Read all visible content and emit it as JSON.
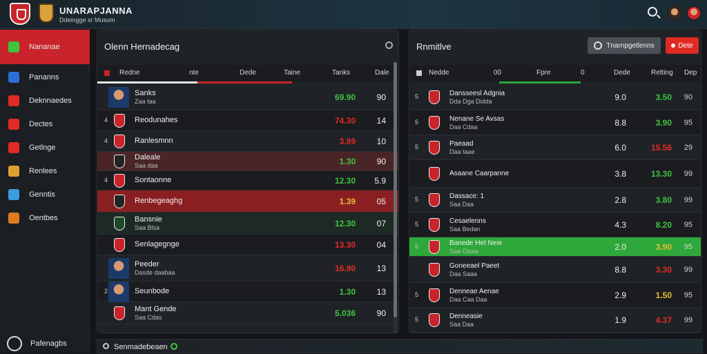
{
  "header": {
    "title": "UNARAPJANNA",
    "subtitle": "Ddeingge sr Musum"
  },
  "sidebar": {
    "items": [
      {
        "label": "Nananae",
        "icon": "team-crest-icon",
        "color": "#3ec43e",
        "active": true
      },
      {
        "label": "Pananns",
        "icon": "list-icon",
        "color": "#2a6fd6",
        "active": false
      },
      {
        "label": "Deknnaedes",
        "icon": "pin-icon",
        "color": "#e02b25",
        "active": false
      },
      {
        "label": "Dectes",
        "icon": "grid-icon",
        "color": "#e02b25",
        "active": false
      },
      {
        "label": "Getlnge",
        "icon": "flag-icon",
        "color": "#e02b25",
        "active": false
      },
      {
        "label": "Renlees",
        "icon": "trophy-icon",
        "color": "#e0a030",
        "active": false
      },
      {
        "label": "Genntis",
        "icon": "star-icon",
        "color": "#3a9de0",
        "active": false
      },
      {
        "label": "Oentbes",
        "icon": "ball-icon",
        "color": "#e07a20",
        "active": false
      }
    ],
    "footer_label": "Pafenagbs"
  },
  "left_panel": {
    "title": "Olenn Hernadecag",
    "columns": [
      "Redne",
      "nte",
      "Dede",
      "Taine",
      "Tanks",
      "Dale"
    ],
    "rows": [
      {
        "rank": "",
        "name": "Sanks",
        "sub": "Zaa taa",
        "val": "69.90",
        "val_color": "#3ec43e",
        "val2": "90",
        "kind": "photo",
        "crest": "#2a6fd6",
        "bg": "#1f2226"
      },
      {
        "rank": "4",
        "name": "Reodunahes",
        "sub": "",
        "val": "74.30",
        "val_color": "#e02b25",
        "val2": "14",
        "kind": "crest",
        "crest": "#c9242b",
        "bg": "#1a1c20"
      },
      {
        "rank": "4",
        "name": "Ranlesmnn",
        "sub": "",
        "val": "3.89",
        "val_color": "#e02b25",
        "val2": "10",
        "kind": "crest",
        "crest": "#c9242b",
        "bg": "#1f2226"
      },
      {
        "rank": "",
        "name": "Daleale",
        "sub": "Saa daa",
        "val": "1.30",
        "val_color": "#3ec43e",
        "val2": "90",
        "kind": "crest",
        "crest": "#222222",
        "bg": "#4a2528"
      },
      {
        "rank": "4",
        "name": "Sontaonne",
        "sub": "",
        "val": "12.30",
        "val_color": "#3ec43e",
        "val2": "5.9",
        "kind": "crest",
        "crest": "#c9242b",
        "bg": "#1a1c20"
      },
      {
        "rank": "",
        "name": "Renbegeaghg",
        "sub": "",
        "val": "1.39",
        "val_color": "#e0c030",
        "val2": "05",
        "kind": "crest",
        "crest": "#222222",
        "bg": "#8a1f22"
      },
      {
        "rank": "",
        "name": "Bansnie",
        "sub": "Saa Blsa",
        "val": "12.30",
        "val_color": "#3ec43e",
        "val2": "07",
        "kind": "crest",
        "crest": "#1a4a2a",
        "bg": "#1d2a24"
      },
      {
        "rank": "",
        "name": "Senlagegnge",
        "sub": "",
        "val": "13.30",
        "val_color": "#e02b25",
        "val2": "04",
        "kind": "crest",
        "crest": "#c9242b",
        "bg": "#1a1c20"
      },
      {
        "rank": "",
        "name": "Peeder",
        "sub": "Dasde daabaa",
        "val": "16.90",
        "val_color": "#e02b25",
        "val2": "13",
        "kind": "photo",
        "crest": "#2a9a3a",
        "bg": "#1f2226"
      },
      {
        "rank": "2",
        "name": "Seunbode",
        "sub": "",
        "val": "1.30",
        "val_color": "#3ec43e",
        "val2": "13",
        "kind": "photo",
        "crest": "#333333",
        "bg": "#1a1c20"
      },
      {
        "rank": "",
        "name": "Mant Gende",
        "sub": "Saa Cdas",
        "val": "5.036",
        "val_color": "#3ec43e",
        "val2": "90",
        "kind": "crest",
        "crest": "#c9242b",
        "bg": "#1f2226"
      }
    ]
  },
  "right_panel": {
    "title": "Rnmitlve",
    "filter_button": "Tnarnpgetlenns",
    "action_button": "Dete",
    "columns": [
      "Nedde",
      "00",
      "Fpre",
      "0",
      "Dede",
      "Retting",
      "Dep"
    ],
    "rows": [
      {
        "rank": "5",
        "name": "Dansseesl Adgnia",
        "sub": "Dda Dga Didda",
        "val2": "9.0",
        "val": "3.50",
        "val_color": "#3ec43e",
        "val3": "90",
        "bg": "#1f2226"
      },
      {
        "rank": "5",
        "name": "Nenane Se Avsas",
        "sub": "Daa Cdaa",
        "val2": "8.8",
        "val": "3.90",
        "val_color": "#3ec43e",
        "val3": "95",
        "bg": "#1a1c20"
      },
      {
        "rank": "5",
        "name": "Paeaad",
        "sub": "Daa taae",
        "val2": "6.0",
        "val": "15.56",
        "val_color": "#e02b25",
        "val3": "29",
        "bg": "#1f2226"
      },
      {
        "rank": "",
        "name": "Asaane Caarpanne",
        "sub": "",
        "val2": "3.8",
        "val": "13.30",
        "val_color": "#3ec43e",
        "val3": "99",
        "bg": "#1a1c20"
      },
      {
        "rank": "5",
        "name": "Dassace: 1",
        "sub": "Saa Daa",
        "val2": "2.8",
        "val": "3.80",
        "val_color": "#3ec43e",
        "val3": "99",
        "bg": "#1f2226"
      },
      {
        "rank": "5",
        "name": "Cesaelenns",
        "sub": "Saa Bedan",
        "val2": "4.3",
        "val": "8.20",
        "val_color": "#3ec43e",
        "val3": "95",
        "bg": "#1a1c20"
      },
      {
        "rank": "5",
        "name": "Banede Het Neie",
        "sub": "Saa Cisaa",
        "val2": "2.0",
        "val": "3.90",
        "val_color": "#e0c030",
        "val3": "95",
        "bg": "#2ea83a"
      },
      {
        "rank": "",
        "name": "Goneeael Paeet",
        "sub": "Daa Saaa",
        "val2": "8.8",
        "val": "3.30",
        "val_color": "#e02b25",
        "val3": "99",
        "bg": "#1f2226"
      },
      {
        "rank": "5",
        "name": "Denneae Aenae",
        "sub": "Daa Caa Daa",
        "val2": "2.9",
        "val": "1.50",
        "val_color": "#e0c030",
        "val3": "95",
        "bg": "#1a1c20"
      },
      {
        "rank": "5",
        "name": "Denneasie",
        "sub": "Saa Daa",
        "val2": "1.9",
        "val": "4.37",
        "val_color": "#e02b25",
        "val3": "99",
        "bg": "#1f2226"
      }
    ]
  },
  "footer": {
    "label": "Senmadebeaen"
  }
}
